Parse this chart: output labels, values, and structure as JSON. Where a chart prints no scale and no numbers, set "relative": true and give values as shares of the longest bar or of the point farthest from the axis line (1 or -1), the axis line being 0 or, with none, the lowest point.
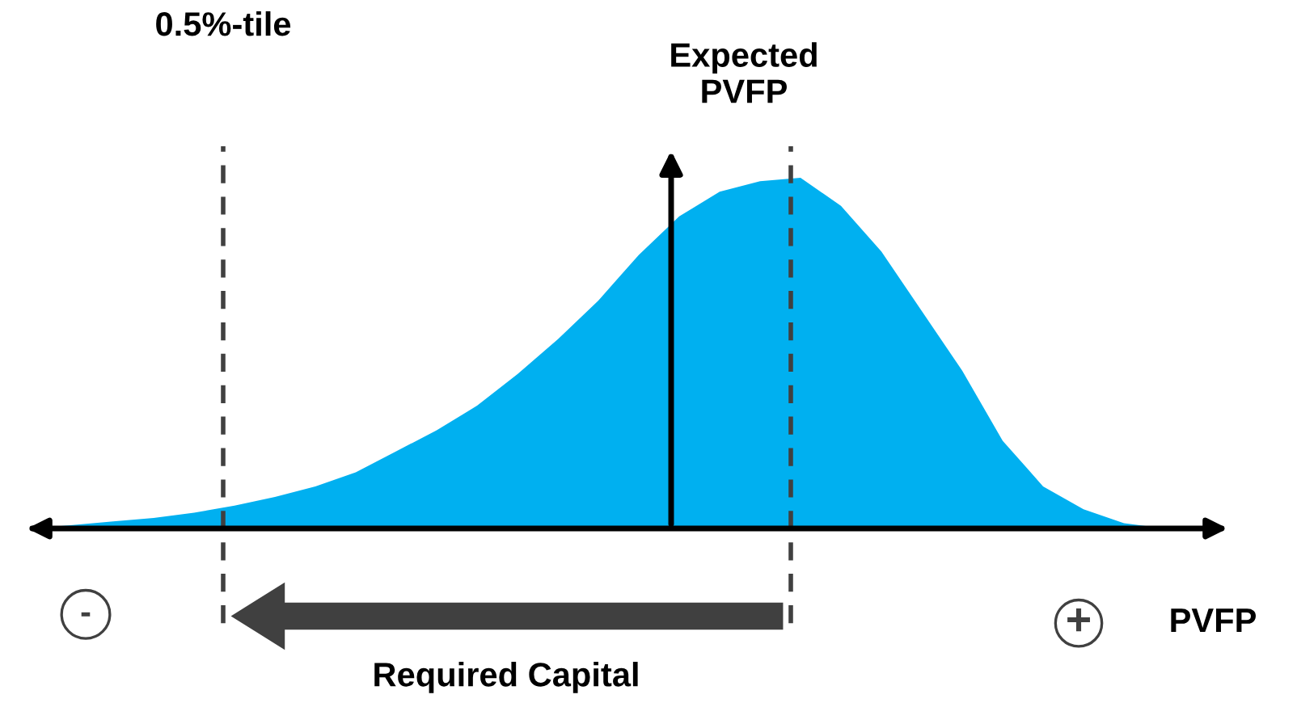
{
  "chart_data": {
    "type": "area",
    "relative": true,
    "categories": [
      null,
      null,
      null,
      null,
      null,
      null,
      null,
      null,
      null,
      null,
      null,
      null,
      null,
      null,
      null,
      null,
      null,
      null,
      null,
      null,
      null,
      null,
      null,
      null,
      null,
      null,
      null,
      null,
      null
    ],
    "series": [
      {
        "color": "#00b0f0",
        "values": [
          0,
          0.01,
          0.02,
          0.03,
          0.045,
          0.065,
          0.09,
          0.12,
          0.16,
          0.22,
          0.28,
          0.35,
          0.44,
          0.54,
          0.65,
          0.78,
          0.89,
          0.96,
          0.99,
          1.0,
          0.92,
          0.79,
          0.62,
          0.45,
          0.25,
          0.12,
          0.055,
          0.015,
          0
        ]
      }
    ],
    "xlabel": "PVFP",
    "annotations": [
      "0.5%-tile",
      "Expected\nPVFP",
      "Required Capital",
      "-",
      "+"
    ]
  }
}
